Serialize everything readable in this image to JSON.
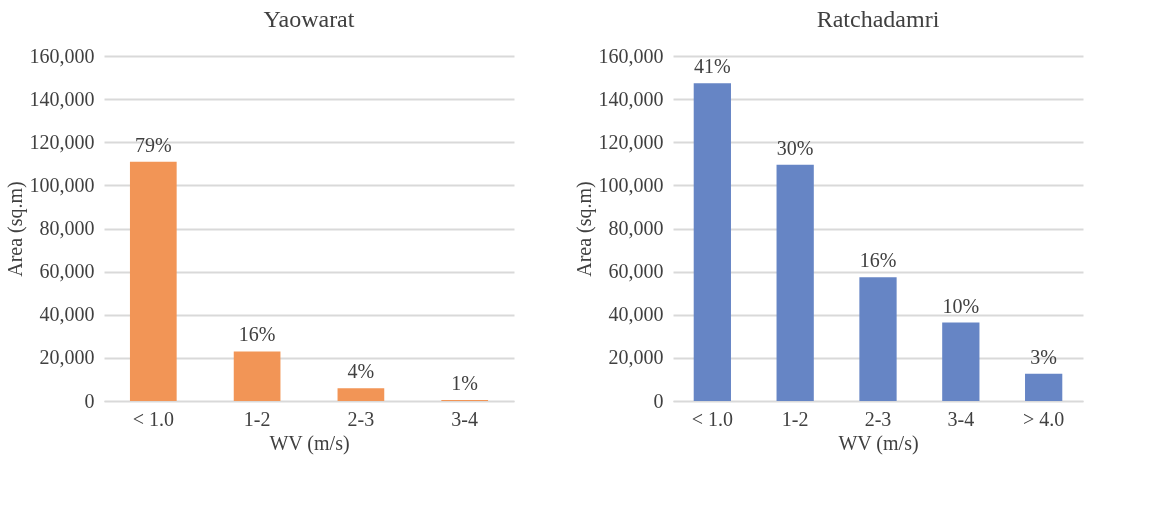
{
  "chart_data": [
    {
      "type": "bar",
      "title": "Yaowarat",
      "xlabel": "WV (m/s)",
      "ylabel": "Area (sq.m)",
      "categories": [
        "< 1.0",
        "1-2",
        "2-3",
        "3-4"
      ],
      "color": "#f29556",
      "values": [
        111000,
        23000,
        5900,
        500
      ],
      "annotations": [
        {
          "text": "79%",
          "x": "< 1.0",
          "y": 111000
        },
        {
          "text": "16%",
          "x": "1-2",
          "y": 23000
        },
        {
          "text": "4%",
          "x": "2-3",
          "y": 5900
        },
        {
          "text": "1%",
          "x": "3-4",
          "y": 500
        }
      ],
      "ylim": [
        0,
        160000
      ],
      "yticks": [
        0,
        {
          "value": 20000,
          "label": "20,000"
        },
        {
          "value": 40000,
          "label": "40,000"
        },
        {
          "value": 60000,
          "label": "60,000"
        },
        {
          "value": 80000,
          "label": "80,000"
        },
        {
          "value": 100000,
          "label": "100,000"
        },
        {
          "value": 120000,
          "label": "120,000"
        },
        {
          "value": 140000,
          "label": "140,000"
        },
        {
          "value": 160000,
          "label": "160,000"
        }
      ],
      "grid": "y"
    },
    {
      "type": "bar",
      "title": "Ratchadamri",
      "xlabel": "WV (m/s)",
      "ylabel": "Area (sq.m)",
      "categories": [
        "< 1.0",
        "1-2",
        "2-3",
        "3-4",
        "> 4.0"
      ],
      "color": "#6685c5",
      "values": [
        147400,
        109600,
        57400,
        36400,
        12600
      ],
      "annotations": [
        {
          "text": "41%",
          "x": "< 1.0",
          "y": 147400
        },
        {
          "text": "30%",
          "x": "1-2",
          "y": 109600
        },
        {
          "text": "16%",
          "x": "2-3",
          "y": 57400
        },
        {
          "text": "10%",
          "x": "3-4",
          "y": 36400
        },
        {
          "text": "3%",
          "x": "> 4.0",
          "y": 12600
        }
      ],
      "ylim": [
        0,
        160000
      ],
      "yticks": [
        0,
        {
          "value": 20000,
          "label": "20,000"
        },
        {
          "value": 40000,
          "label": "40,000"
        },
        {
          "value": 60000,
          "label": "60,000"
        },
        {
          "value": 80000,
          "label": "80,000"
        },
        {
          "value": 100000,
          "label": "100,000"
        },
        {
          "value": 120000,
          "label": "120,000"
        },
        {
          "value": 140000,
          "label": "140,000"
        },
        {
          "value": 160000,
          "label": "160,000"
        }
      ],
      "grid": "y"
    }
  ]
}
